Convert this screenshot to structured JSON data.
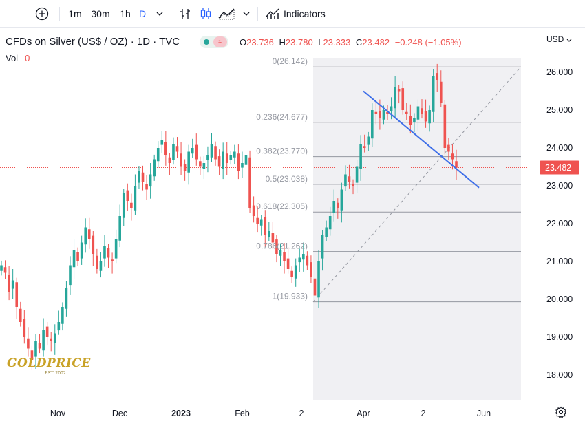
{
  "toolbar": {
    "add_symbol_icon": "plus-circle-icon",
    "intervals": [
      "1m",
      "30m",
      "1h",
      "D"
    ],
    "active_interval": "D",
    "indicators_label": "Indicators"
  },
  "header": {
    "symbol": "CFDs on Silver (US$ / OZ) · 1D · TVC",
    "ohlc": {
      "o_label": "O",
      "o": "23.736",
      "h_label": "H",
      "h": "23.780",
      "l_label": "L",
      "l": "23.333",
      "c_label": "C",
      "c": "23.482",
      "change": "−0.248 (−1.05%)"
    },
    "vol_label": "Vol",
    "vol_value": "0"
  },
  "currency": "USD",
  "logo": {
    "main": "GOLDPRICE",
    "sub": "EST. 2002"
  },
  "colors": {
    "up": "#26a69a",
    "down": "#ef5350",
    "trendline": "#3d6ee8",
    "fib_area": "#f0f0f3",
    "price_tag": "#ef5350"
  },
  "chart_data": {
    "type": "candlestick",
    "symbol": "CFDs on Silver (US$ / OZ)",
    "timeframe": "1D",
    "y_ticks": [
      18,
      19,
      20,
      21,
      22,
      23,
      24,
      25,
      26
    ],
    "y_tick_labels": [
      "18.000",
      "19.000",
      "20.000",
      "21.000",
      "22.000",
      "23.000",
      "24.000",
      "25.000",
      "26.000"
    ],
    "ylim": [
      17.3,
      26.9
    ],
    "x_tick_labels": [
      "ct",
      "Nov",
      "Dec",
      "2023",
      "Feb",
      "2",
      "Apr",
      "2",
      "Jun"
    ],
    "last_price": 23.482,
    "last_price_label": "23.482",
    "fib_retracement": {
      "levels": [
        {
          "ratio": "0",
          "price": 26.142,
          "label": "0(26.142)"
        },
        {
          "ratio": "0.236",
          "price": 24.677,
          "label": "0.236(24.677)"
        },
        {
          "ratio": "0.382",
          "price": 23.77,
          "label": "0.382(23.770)"
        },
        {
          "ratio": "0.5",
          "price": 23.038,
          "label": "0.5(23.038)"
        },
        {
          "ratio": "0.618",
          "price": 22.305,
          "label": "0.618(22.305)"
        },
        {
          "ratio": "0.786",
          "price": 21.262,
          "label": "0.786(21.262)"
        },
        {
          "ratio": "1",
          "price": 19.933,
          "label": "1(19.933)"
        }
      ]
    },
    "support_line_price": 18.5,
    "trendline": {
      "start": 25.5,
      "end": 22.95
    },
    "closes": [
      20.9,
      20.7,
      20.2,
      20.5,
      19.8,
      19.4,
      19.0,
      18.7,
      18.4,
      18.9,
      18.7,
      19.2,
      19.0,
      18.9,
      19.1,
      19.4,
      19.8,
      20.3,
      20.9,
      21.3,
      21.0,
      21.5,
      21.9,
      21.6,
      21.2,
      20.8,
      21.0,
      21.4,
      21.1,
      21.0,
      21.6,
      22.2,
      22.8,
      22.6,
      22.4,
      23.0,
      23.4,
      23.1,
      22.9,
      23.3,
      23.7,
      24.0,
      24.2,
      23.8,
      23.6,
      24.1,
      23.9,
      23.5,
      23.4,
      23.9,
      24.0,
      23.7,
      23.5,
      23.6,
      23.8,
      24.1,
      23.7,
      23.5,
      23.9,
      23.6,
      23.8,
      23.9,
      23.4,
      23.6,
      23.8,
      22.4,
      22.2,
      22.0,
      22.1,
      21.7,
      21.8,
      21.5,
      21.2,
      21.3,
      21.0,
      20.8,
      20.6,
      20.9,
      21.1,
      21.2,
      20.9,
      20.6,
      20.1,
      21.0,
      21.7,
      21.9,
      22.2,
      22.6,
      22.4,
      22.9,
      23.3,
      23.1,
      23.0,
      23.5,
      24.1,
      24.0,
      24.3,
      25.0,
      24.9,
      24.8,
      25.0,
      24.9,
      25.1,
      25.6,
      25.5,
      25.0,
      24.9,
      24.6,
      24.8,
      25.1,
      24.9,
      24.7,
      25.0,
      25.9,
      25.8,
      25.2,
      24.0,
      23.9,
      23.7,
      23.48
    ]
  }
}
